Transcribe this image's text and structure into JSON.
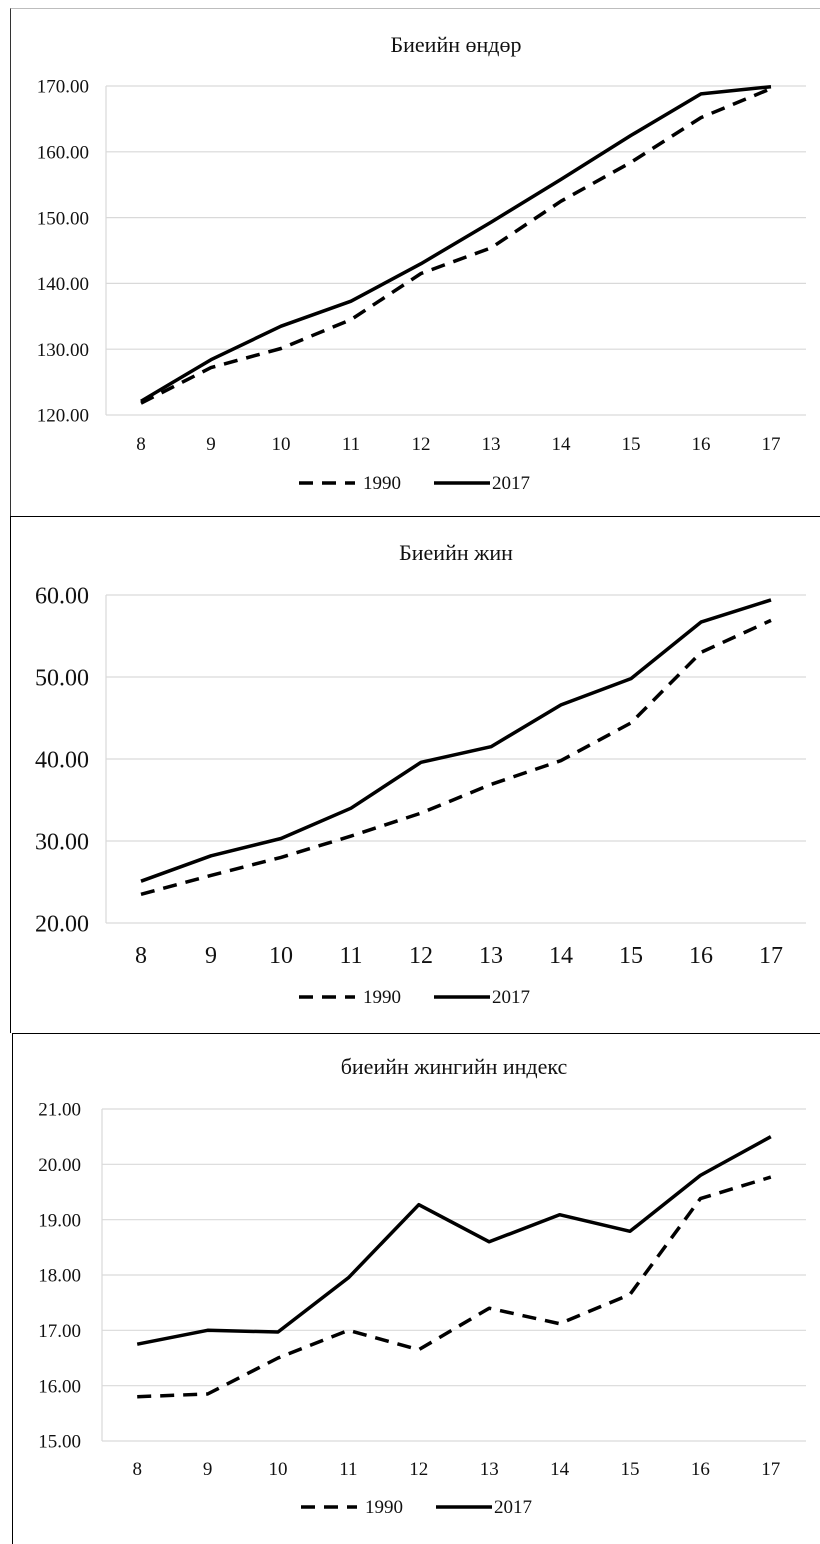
{
  "chart_data": [
    {
      "type": "line",
      "title": "Биеийн өндөр",
      "categories": [
        "8",
        "9",
        "10",
        "11",
        "12",
        "13",
        "14",
        "15",
        "16",
        "17"
      ],
      "ylim": [
        120,
        170
      ],
      "yticks": [
        "120.00",
        "130.00",
        "140.00",
        "150.00",
        "160.00",
        "170.00"
      ],
      "series": [
        {
          "name": "1990",
          "style": "dashed",
          "values": [
            121.8,
            127.2,
            130.1,
            134.5,
            141.5,
            145.4,
            152.5,
            158.4,
            165.2,
            169.6
          ]
        },
        {
          "name": "2017",
          "style": "solid",
          "values": [
            122.1,
            128.4,
            133.5,
            137.3,
            143.0,
            149.3,
            155.8,
            162.5,
            168.8,
            169.9
          ]
        }
      ],
      "grid": true,
      "legend": "bottom-center"
    },
    {
      "type": "line",
      "title": "Биеийн жин",
      "categories": [
        "8",
        "9",
        "10",
        "11",
        "12",
        "13",
        "14",
        "15",
        "16",
        "17"
      ],
      "ylim": [
        20,
        60
      ],
      "yticks": [
        "20.00",
        "30.00",
        "40.00",
        "50.00",
        "60.00"
      ],
      "series": [
        {
          "name": "1990",
          "style": "dashed",
          "values": [
            23.5,
            25.8,
            28.0,
            30.6,
            33.4,
            36.9,
            39.8,
            44.4,
            53.0,
            56.9
          ]
        },
        {
          "name": "2017",
          "style": "solid",
          "values": [
            25.1,
            28.2,
            30.3,
            34.0,
            39.6,
            41.5,
            46.6,
            49.8,
            56.7,
            59.4
          ]
        }
      ],
      "grid": true,
      "legend": "bottom-center"
    },
    {
      "type": "line",
      "title": "биеийн жингийн индекс",
      "categories": [
        "8",
        "9",
        "10",
        "11",
        "12",
        "13",
        "14",
        "15",
        "16",
        "17"
      ],
      "ylim": [
        15,
        21
      ],
      "yticks": [
        "15.00",
        "16.00",
        "17.00",
        "18.00",
        "19.00",
        "20.00",
        "21.00"
      ],
      "series": [
        {
          "name": "1990",
          "style": "dashed",
          "values": [
            15.8,
            15.85,
            16.5,
            17.0,
            16.65,
            17.4,
            17.12,
            17.65,
            19.38,
            19.77
          ]
        },
        {
          "name": "2017",
          "style": "solid",
          "values": [
            16.75,
            17.0,
            16.97,
            17.95,
            19.27,
            18.6,
            19.09,
            18.79,
            19.8,
            20.5
          ]
        }
      ],
      "grid": true,
      "legend": "bottom-center"
    }
  ]
}
